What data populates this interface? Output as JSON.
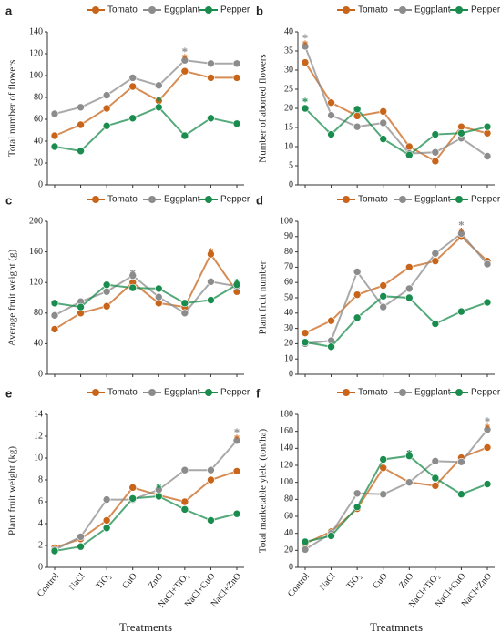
{
  "chart_data": [
    {
      "type": "line",
      "panel_label": "a",
      "ylabel": "Total number of flowers",
      "categories": [
        null,
        null,
        null,
        null,
        null,
        null,
        null,
        null
      ],
      "ylim": [
        0,
        140
      ],
      "yticks": [
        0,
        20,
        40,
        60,
        80,
        100,
        120,
        140
      ],
      "series": [
        {
          "name": "Tomato",
          "color": "#c8651b",
          "values": [
            45,
            55,
            70,
            90,
            77,
            104,
            98,
            98
          ]
        },
        {
          "name": "Eggplant",
          "color": "#8c8c8c",
          "values": [
            65,
            71,
            82,
            98,
            91,
            114,
            111,
            111
          ]
        },
        {
          "name": "Pepper",
          "color": "#1a8c4e",
          "values": [
            35,
            31,
            54,
            61,
            71,
            45,
            61,
            56
          ]
        }
      ],
      "annotations": [
        {
          "text": "*",
          "series": 0,
          "point": 5
        },
        {
          "text": "*",
          "series": 1,
          "point": 5
        },
        {
          "text": "*",
          "series": 2,
          "point": 4
        }
      ]
    },
    {
      "type": "line",
      "panel_label": "b",
      "ylabel": "Number of aborted flowers",
      "categories": [
        null,
        null,
        null,
        null,
        null,
        null,
        null,
        null
      ],
      "ylim": [
        0,
        40
      ],
      "yticks": [
        0,
        5,
        10,
        15,
        20,
        25,
        30,
        35,
        40
      ],
      "series": [
        {
          "name": "Tomato",
          "color": "#c8651b",
          "values": [
            32,
            21.5,
            18,
            19.2,
            10,
            6.2,
            15.2,
            13.5
          ]
        },
        {
          "name": "Eggplant",
          "color": "#8c8c8c",
          "values": [
            36.2,
            18.2,
            15.2,
            16.2,
            8.2,
            8.5,
            12.2,
            7.5
          ]
        },
        {
          "name": "Pepper",
          "color": "#1a8c4e",
          "values": [
            20,
            13.2,
            19.8,
            12,
            7.8,
            13.2,
            13.5,
            15.2
          ]
        }
      ],
      "annotations": [
        {
          "text": "*",
          "series": 0,
          "point": 0
        },
        {
          "text": "*",
          "series": 1,
          "point": 0
        },
        {
          "text": "*",
          "series": 2,
          "point": 0
        }
      ]
    },
    {
      "type": "line",
      "panel_label": "c",
      "ylabel": "Average fruit weight (g)",
      "categories": [
        null,
        null,
        null,
        null,
        null,
        null,
        null,
        null
      ],
      "ylim": [
        0,
        200
      ],
      "yticks": [
        0,
        40,
        80,
        120,
        160,
        200
      ],
      "series": [
        {
          "name": "Tomato",
          "color": "#c8651b",
          "values": [
            59,
            80,
            89,
            120,
            93,
            88,
            157,
            108
          ]
        },
        {
          "name": "Eggplant",
          "color": "#8c8c8c",
          "values": [
            77,
            95,
            108,
            129,
            101,
            80,
            121,
            115
          ]
        },
        {
          "name": "Pepper",
          "color": "#1a8c4e",
          "values": [
            93,
            88,
            117,
            113,
            112,
            93,
            97,
            117
          ]
        }
      ],
      "annotations": [
        {
          "text": "*",
          "series": 1,
          "point": 3
        },
        {
          "text": "*",
          "series": 0,
          "point": 6
        },
        {
          "text": "*",
          "series": 2,
          "point": 7
        }
      ]
    },
    {
      "type": "line",
      "panel_label": "d",
      "ylabel": "Plant fruit number",
      "categories": [
        null,
        null,
        null,
        null,
        null,
        null,
        null,
        null
      ],
      "ylim": [
        0,
        100
      ],
      "yticks": [
        0,
        10,
        20,
        30,
        40,
        50,
        60,
        70,
        80,
        90,
        100
      ],
      "series": [
        {
          "name": "Tomato",
          "color": "#c8651b",
          "values": [
            27,
            35,
            52,
            58,
            70,
            74,
            90,
            74
          ]
        },
        {
          "name": "Eggplant",
          "color": "#8c8c8c",
          "values": [
            20,
            22,
            67,
            44,
            56,
            79,
            92,
            72
          ]
        },
        {
          "name": "Pepper",
          "color": "#1a8c4e",
          "values": [
            21,
            18,
            37,
            51,
            50,
            33,
            41,
            47
          ]
        }
      ],
      "annotations": [
        {
          "text": "*",
          "series": 0,
          "point": 6
        },
        {
          "text": "*",
          "series": 1,
          "point": 6
        }
      ]
    },
    {
      "type": "line",
      "panel_label": "e",
      "ylabel": "Plant fruit weight (kg)",
      "xlabel": "Treatments",
      "categories": [
        "Control",
        "NaCl",
        "TiO₂",
        "CuO",
        "ZnO",
        "NaCl+TiO₂",
        "NaCl+CuO",
        "NaCl+ZnO"
      ],
      "ylim": [
        0,
        14
      ],
      "yticks": [
        0,
        2,
        4,
        6,
        8,
        10,
        12,
        14
      ],
      "series": [
        {
          "name": "Tomato",
          "color": "#c8651b",
          "values": [
            1.8,
            2.6,
            4.3,
            7.3,
            6.6,
            6.0,
            8.0,
            8.8
          ]
        },
        {
          "name": "Eggplant",
          "color": "#8c8c8c",
          "values": [
            1.6,
            2.8,
            6.2,
            6.2,
            7.1,
            8.9,
            8.9,
            11.6
          ]
        },
        {
          "name": "Pepper",
          "color": "#1a8c4e",
          "values": [
            1.5,
            1.9,
            3.6,
            6.3,
            6.5,
            5.3,
            4.3,
            4.9
          ]
        }
      ],
      "annotations": [
        {
          "text": "*",
          "series": 2,
          "point": 4
        },
        {
          "text": "*",
          "series": 0,
          "point": 7
        },
        {
          "text": "*",
          "series": 1,
          "point": 7
        }
      ]
    },
    {
      "type": "line",
      "panel_label": "f",
      "ylabel": "Total marketable yield (ton/ha)",
      "xlabel": "Treatmnets",
      "categories": [
        "Control",
        "NaCl",
        "TiO₂",
        "CuO",
        "ZnO",
        "NaCl+TiO₂",
        "NaCl+CuO",
        "NaCl+ZnO"
      ],
      "ylim": [
        0,
        180
      ],
      "yticks": [
        0,
        20,
        40,
        60,
        80,
        100,
        120,
        140,
        160,
        180
      ],
      "series": [
        {
          "name": "Tomato",
          "color": "#c8651b",
          "values": [
            28,
            42,
            69,
            117,
            100,
            96,
            129,
            141
          ]
        },
        {
          "name": "Eggplant",
          "color": "#8c8c8c",
          "values": [
            21,
            40,
            87,
            86,
            100,
            125,
            124,
            162
          ]
        },
        {
          "name": "Pepper",
          "color": "#1a8c4e",
          "values": [
            30,
            37,
            71,
            127,
            131,
            105,
            86,
            98
          ]
        }
      ],
      "annotations": [
        {
          "text": "*",
          "series": 2,
          "point": 4
        },
        {
          "text": "*",
          "series": 0,
          "point": 7
        },
        {
          "text": "*",
          "series": 1,
          "point": 7
        }
      ]
    }
  ]
}
